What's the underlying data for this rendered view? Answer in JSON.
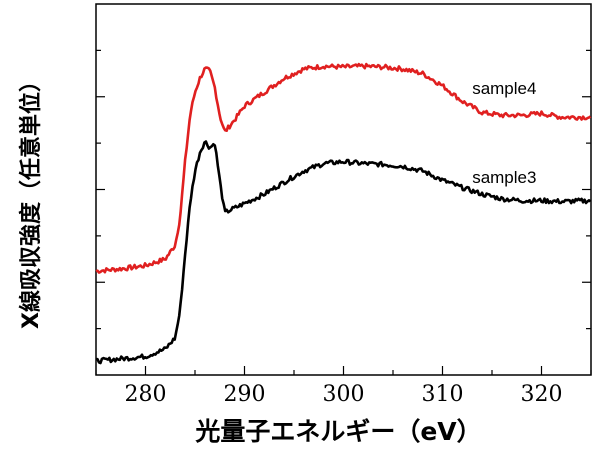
{
  "chart_data": {
    "type": "line",
    "title": "",
    "xlabel": "光量子エネルギー（eV）",
    "ylabel": "X線吸収強度（任意単位）",
    "xlim": [
      275,
      325
    ],
    "ylim": [
      0,
      4
    ],
    "xticks": [
      280,
      290,
      300,
      310,
      320
    ],
    "y_ticks_labeled": false,
    "grid": false,
    "series": [
      {
        "name": "sample4",
        "color": "#e02020",
        "x": [
          275,
          278,
          280,
          282,
          283,
          283.5,
          284,
          284.5,
          285,
          285.5,
          286,
          286.5,
          287,
          287.5,
          288,
          289,
          290,
          292,
          294,
          296,
          298,
          300,
          302,
          304,
          306,
          308,
          310,
          312,
          314,
          316,
          318,
          320,
          322,
          325
        ],
        "y": [
          1.12,
          1.15,
          1.18,
          1.25,
          1.4,
          1.7,
          2.3,
          2.8,
          3.05,
          3.2,
          3.3,
          3.28,
          3.1,
          2.8,
          2.62,
          2.75,
          2.9,
          3.05,
          3.2,
          3.3,
          3.33,
          3.32,
          3.33,
          3.32,
          3.3,
          3.25,
          3.12,
          2.95,
          2.83,
          2.8,
          2.8,
          2.82,
          2.78,
          2.78
        ]
      },
      {
        "name": "sample3",
        "color": "#000000",
        "x": [
          275,
          278,
          280,
          282,
          283,
          283.5,
          284,
          284.5,
          285,
          285.5,
          286,
          286.5,
          287,
          287.5,
          288,
          289,
          290,
          292,
          294,
          296,
          298,
          300,
          302,
          304,
          306,
          308,
          310,
          312,
          314,
          316,
          318,
          320,
          322,
          325
        ],
        "y": [
          0.15,
          0.18,
          0.2,
          0.28,
          0.4,
          0.7,
          1.3,
          1.85,
          2.2,
          2.4,
          2.52,
          2.45,
          2.5,
          2.1,
          1.75,
          1.8,
          1.85,
          1.95,
          2.08,
          2.2,
          2.28,
          2.3,
          2.28,
          2.27,
          2.25,
          2.2,
          2.1,
          2.02,
          1.95,
          1.9,
          1.88,
          1.88,
          1.87,
          1.88
        ]
      }
    ],
    "annotations": [
      {
        "text": "sample4",
        "x": 313,
        "y": 3.03
      },
      {
        "text": "sample3",
        "x": 313,
        "y": 2.07
      }
    ]
  }
}
